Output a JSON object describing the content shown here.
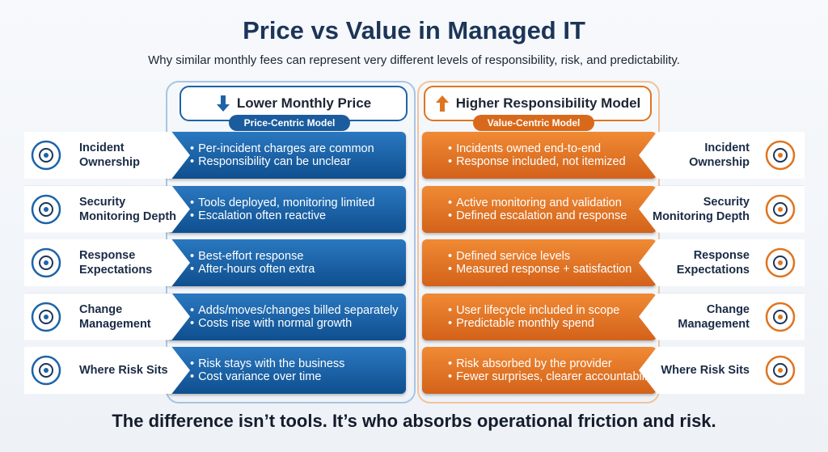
{
  "title": "Price vs Value in Managed IT",
  "subtitle": "Why similar monthly fees can represent very different levels of responsibility, risk, and predictability.",
  "left_header": {
    "title": "Lower Monthly Price",
    "model": "Price-Centric Model"
  },
  "right_header": {
    "title": "Higher Responsibility Model",
    "model": "Value-Centric Model"
  },
  "rows": [
    {
      "label": [
        "Incident",
        "Ownership"
      ],
      "left": [
        "Per-incident charges are common",
        "Responsibility can be unclear"
      ],
      "right": [
        "Incidents owned end-to-end",
        "Response included, not itemized"
      ]
    },
    {
      "label": [
        "Security",
        "Monitoring Depth"
      ],
      "left": [
        "Tools deployed, monitoring limited",
        "Escalation often reactive"
      ],
      "right": [
        "Active monitoring and validation",
        "Defined escalation and response"
      ]
    },
    {
      "label": [
        "Response",
        "Expectations"
      ],
      "left": [
        "Best-effort response",
        "After-hours often extra"
      ],
      "right": [
        "Defined service levels",
        "Measured response + satisfaction"
      ]
    },
    {
      "label": [
        "Change",
        "Management"
      ],
      "left": [
        "Adds/moves/changes billed separately",
        "Costs rise with normal growth"
      ],
      "right": [
        "User lifecycle included in scope",
        "Predictable monthly spend"
      ]
    },
    {
      "label": [
        "Where Risk Sits"
      ],
      "left": [
        "Risk stays with the business",
        "Cost variance over time"
      ],
      "right": [
        "Risk absorbed by the provider",
        "Fewer surprises, clearer accountability"
      ]
    }
  ],
  "footer": "The difference isn’t tools. It’s who absorbs operational friction and risk."
}
